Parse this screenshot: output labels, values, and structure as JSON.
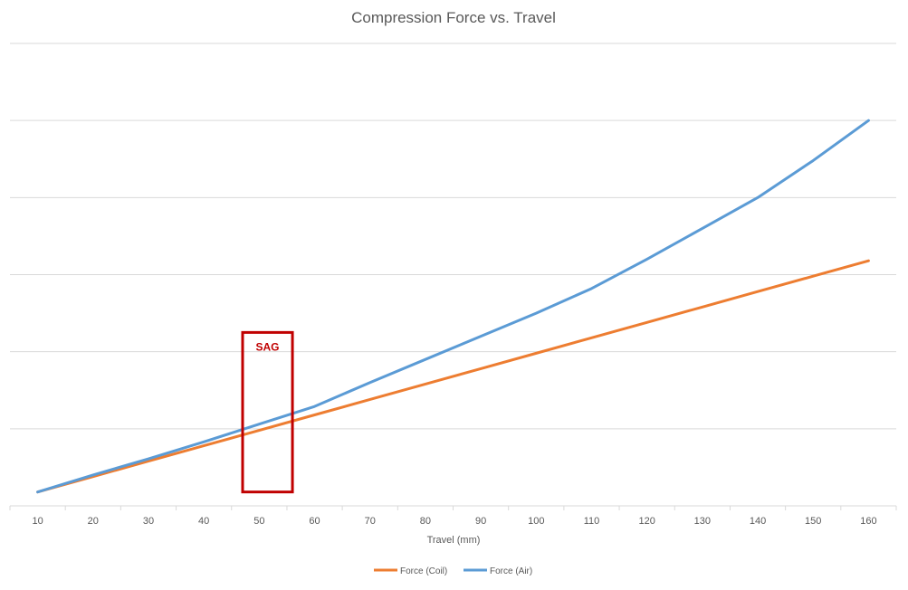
{
  "chart_data": {
    "type": "line",
    "title": "Compression Force vs. Travel",
    "xlabel": "Travel (mm)",
    "ylabel": "",
    "categories": [
      "10",
      "20",
      "30",
      "40",
      "50",
      "60",
      "70",
      "80",
      "90",
      "100",
      "110",
      "120",
      "130",
      "140",
      "150",
      "160"
    ],
    "ylim": [
      0,
      6
    ],
    "y_tick_labels_shown": false,
    "grid": true,
    "legend": "bottom",
    "series": [
      {
        "name": "Force (Coil)",
        "color": "#ED7D31",
        "values": [
          0.18,
          0.38,
          0.58,
          0.78,
          0.98,
          1.18,
          1.38,
          1.58,
          1.78,
          1.98,
          2.18,
          2.38,
          2.58,
          2.78,
          2.98,
          3.18
        ]
      },
      {
        "name": "Force (Air)",
        "color": "#5B9BD5",
        "values": [
          0.18,
          0.4,
          0.61,
          0.83,
          1.06,
          1.29,
          1.6,
          1.9,
          2.2,
          2.5,
          2.82,
          3.2,
          3.6,
          4.0,
          4.48,
          5.0
        ]
      }
    ],
    "annotations": [
      {
        "text": "SAG",
        "color": "#C00000",
        "x_range": [
          "47",
          "56"
        ],
        "y_range": [
          0.18,
          2.25
        ]
      }
    ]
  }
}
